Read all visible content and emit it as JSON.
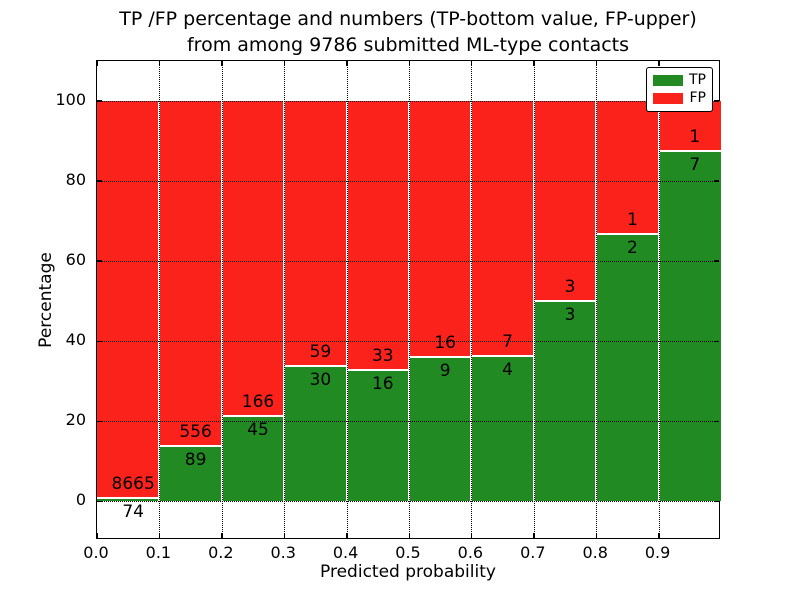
{
  "title": {
    "line1": "TP /FP percentage and numbers (TP-bottom value, FP-upper)",
    "line2": "from among 9786 submitted ML-type contacts"
  },
  "axes": {
    "xlabel": "Predicted probability",
    "ylabel": "Percentage",
    "ytick_labels": [
      "0",
      "20",
      "40",
      "60",
      "80",
      "100"
    ],
    "yticks": [
      0,
      20,
      40,
      60,
      80,
      100
    ],
    "xtick_labels": [
      "0.0",
      "0.1",
      "0.2",
      "0.3",
      "0.4",
      "0.5",
      "0.6",
      "0.7",
      "0.8",
      "0.9"
    ],
    "xticks": [
      0.0,
      0.1,
      0.2,
      0.3,
      0.4,
      0.5,
      0.6,
      0.7,
      0.8,
      0.9
    ],
    "ylim": [
      -10,
      110
    ],
    "xlim": [
      0.0,
      1.0
    ],
    "grid": "dotted black, horizontal and vertical"
  },
  "legend": {
    "position": "upper right",
    "entries": [
      {
        "label": "TP",
        "color": "#228a22"
      },
      {
        "label": "FP",
        "color": "#fb221b"
      }
    ]
  },
  "colors": {
    "tp_green": "#228a22",
    "fp_red": "#fb221b",
    "bar_edge": "#ffffff",
    "text": "#000000"
  },
  "chart_data": {
    "type": "bar",
    "subtype": "stacked-100-percent",
    "title": "TP /FP percentage and numbers (TP-bottom value, FP-upper) from among 9786 submitted ML-type contacts",
    "xlabel": "Predicted probability",
    "ylabel": "Percentage",
    "ylim": [
      -10,
      110
    ],
    "xlim": [
      0.0,
      1.0
    ],
    "bin_width": 0.1,
    "bin_starts": [
      0.0,
      0.1,
      0.2,
      0.3,
      0.4,
      0.5,
      0.6,
      0.7,
      0.8,
      0.9
    ],
    "categories": [
      "0.0-0.1",
      "0.1-0.2",
      "0.2-0.3",
      "0.3-0.4",
      "0.4-0.5",
      "0.5-0.6",
      "0.6-0.7",
      "0.7-0.8",
      "0.8-0.9",
      "0.9-1.0"
    ],
    "series": [
      {
        "name": "TP",
        "color": "#228a22",
        "counts": [
          74,
          89,
          45,
          30,
          16,
          9,
          4,
          3,
          2,
          7
        ]
      },
      {
        "name": "FP",
        "color": "#fb221b",
        "counts": [
          8665,
          556,
          166,
          59,
          33,
          16,
          7,
          3,
          1,
          1
        ]
      }
    ],
    "tp_percent": [
      0.85,
      13.8,
      21.33,
      33.71,
      32.65,
      36.0,
      36.36,
      50.0,
      66.67,
      87.5
    ],
    "fp_percent": [
      99.15,
      86.2,
      78.67,
      66.29,
      67.35,
      64.0,
      63.64,
      50.0,
      33.33,
      12.5
    ],
    "total_contacts": 9786,
    "legend_position": "upper right"
  }
}
